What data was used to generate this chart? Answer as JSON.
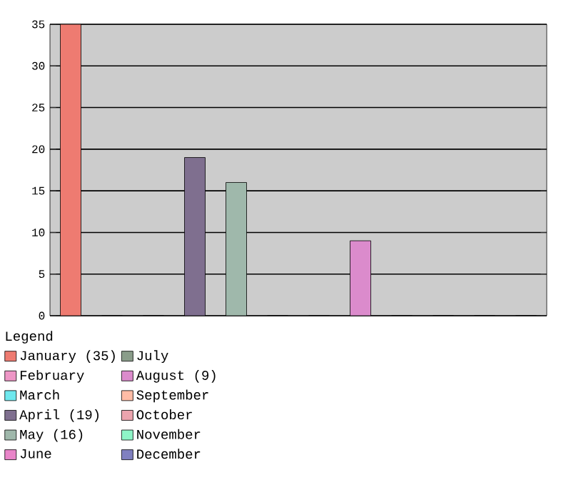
{
  "chart_data": {
    "type": "bar",
    "legend_title": "Legend",
    "categories": [
      null
    ],
    "series": [
      {
        "name": "January (35)",
        "color": "#ee7b71",
        "values": [
          35
        ]
      },
      {
        "name": "February",
        "color": "#ee96c6",
        "values": [
          0
        ]
      },
      {
        "name": "March",
        "color": "#6ee8ee",
        "values": [
          0
        ]
      },
      {
        "name": "April (19)",
        "color": "#7f6f8f",
        "values": [
          19
        ]
      },
      {
        "name": "May (16)",
        "color": "#9fb8ab",
        "values": [
          16
        ]
      },
      {
        "name": "June",
        "color": "#e985c9",
        "values": [
          0
        ]
      },
      {
        "name": "July",
        "color": "#8a9d8a",
        "values": [
          0
        ]
      },
      {
        "name": "August (9)",
        "color": "#db8bcc",
        "values": [
          9
        ]
      },
      {
        "name": "September",
        "color": "#ffbca6",
        "values": [
          0
        ]
      },
      {
        "name": "October",
        "color": "#eba4ae",
        "values": [
          0
        ]
      },
      {
        "name": "November",
        "color": "#8ef5c7",
        "values": [
          0
        ]
      },
      {
        "name": "December",
        "color": "#8080c0",
        "values": [
          0
        ]
      }
    ],
    "ylim": [
      0,
      35
    ],
    "yticks": [
      0,
      5,
      10,
      15,
      20,
      25,
      30,
      35
    ],
    "grid": "y",
    "legend": "bottom"
  }
}
